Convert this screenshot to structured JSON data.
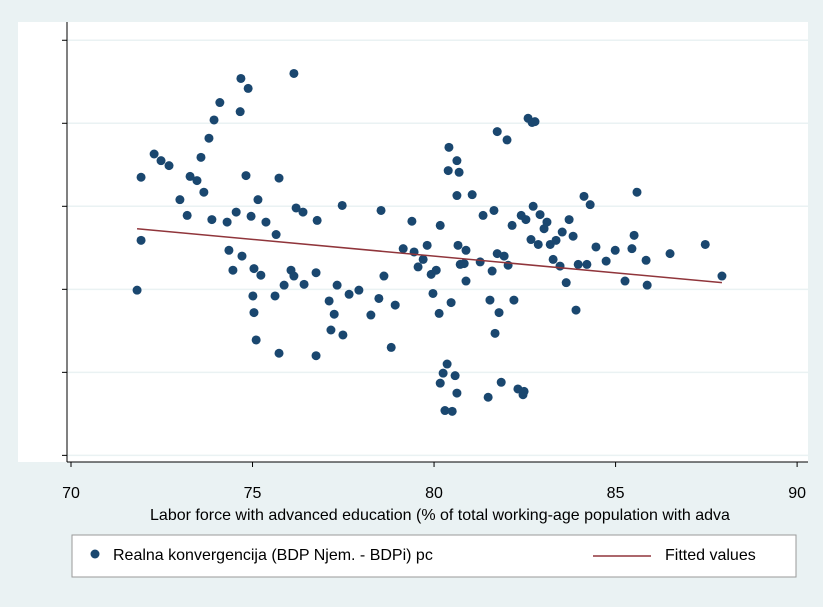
{
  "chart_data": {
    "type": "scatter",
    "xlabel": "Labor force with advanced education (% of total working-age population with adva",
    "xlim": [
      69.89,
      90.3
    ],
    "xticks": [
      70,
      75,
      80,
      85,
      90
    ],
    "ylim": [
      -0.08,
      5.22
    ],
    "yticks": [
      0,
      1,
      2,
      3,
      4,
      5
    ],
    "grid": true,
    "legend": "bottom",
    "series": [
      {
        "name": "Realna konvergencija (BDP Njem. - BDPi) pc",
        "color": "#1a476f",
        "x": [
          71.82,
          71.93,
          71.93,
          72.29,
          72.48,
          72.7,
          73.0,
          73.2,
          73.28,
          73.47,
          73.58,
          73.66,
          73.8,
          73.88,
          73.94,
          74.1,
          74.3,
          74.35,
          74.46,
          74.55,
          74.66,
          74.68,
          74.71,
          74.82,
          74.88,
          74.96,
          75.01,
          75.04,
          75.04,
          75.1,
          75.15,
          75.23,
          75.37,
          75.65,
          75.62,
          75.73,
          75.73,
          75.87,
          76.06,
          76.14,
          76.14,
          76.2,
          76.39,
          76.42,
          76.75,
          76.78,
          76.75,
          77.11,
          77.16,
          77.25,
          77.33,
          77.47,
          77.49,
          77.66,
          77.93,
          78.26,
          78.48,
          78.54,
          78.62,
          78.82,
          78.93,
          79.15,
          79.39,
          79.45,
          79.56,
          79.7,
          79.81,
          79.92,
          79.97,
          80.06,
          80.14,
          80.17,
          80.17,
          80.25,
          80.3,
          80.36,
          80.39,
          80.41,
          80.47,
          80.5,
          80.58,
          80.63,
          80.63,
          80.66,
          80.72,
          80.69,
          80.63,
          80.83,
          80.88,
          80.88,
          81.05,
          81.27,
          81.35,
          81.49,
          81.54,
          81.6,
          81.65,
          81.68,
          81.74,
          81.74,
          81.79,
          81.85,
          81.93,
          82.01,
          82.04,
          82.15,
          82.2,
          82.31,
          82.4,
          82.45,
          82.48,
          82.53,
          82.59,
          82.67,
          82.7,
          82.73,
          82.78,
          82.87,
          82.92,
          83.03,
          83.11,
          83.2,
          83.28,
          83.36,
          83.47,
          83.53,
          83.64,
          83.72,
          83.83,
          83.91,
          83.97,
          84.13,
          84.21,
          84.3,
          84.46,
          84.74,
          84.99,
          85.26,
          85.45,
          85.51,
          85.59,
          85.84,
          85.87,
          86.5,
          87.47,
          87.93
        ],
        "values": [
          1.99,
          3.35,
          2.59,
          3.63,
          3.55,
          3.49,
          3.08,
          2.89,
          3.36,
          3.31,
          3.59,
          3.17,
          3.82,
          2.84,
          4.04,
          4.25,
          2.81,
          2.47,
          2.23,
          2.93,
          4.14,
          4.54,
          2.4,
          3.37,
          4.42,
          2.88,
          1.92,
          2.25,
          1.72,
          1.39,
          3.08,
          2.17,
          2.81,
          2.66,
          1.92,
          3.34,
          1.23,
          2.05,
          2.23,
          4.6,
          2.16,
          2.98,
          2.93,
          2.06,
          2.2,
          2.83,
          1.2,
          1.86,
          1.51,
          1.7,
          2.05,
          3.01,
          1.45,
          1.94,
          1.99,
          1.69,
          1.89,
          2.95,
          2.16,
          1.3,
          1.81,
          2.49,
          2.82,
          2.45,
          2.27,
          2.36,
          2.53,
          2.18,
          1.95,
          2.23,
          1.71,
          0.87,
          2.77,
          0.99,
          0.54,
          1.1,
          3.43,
          3.71,
          1.84,
          0.53,
          0.96,
          3.55,
          3.13,
          2.53,
          2.3,
          3.41,
          0.75,
          2.31,
          2.47,
          2.1,
          3.14,
          2.33,
          2.89,
          0.7,
          1.87,
          2.22,
          2.95,
          1.47,
          3.9,
          2.43,
          1.72,
          0.88,
          2.4,
          3.8,
          2.29,
          2.77,
          1.87,
          0.8,
          2.89,
          0.73,
          0.77,
          2.84,
          4.06,
          2.6,
          4.01,
          3.0,
          4.02,
          2.54,
          2.9,
          2.73,
          2.81,
          2.54,
          2.36,
          2.59,
          2.28,
          2.69,
          2.08,
          2.84,
          2.64,
          1.75,
          2.3,
          3.12,
          2.3,
          3.02,
          2.51,
          2.34,
          2.47,
          2.1,
          2.49,
          2.65,
          3.17,
          2.35,
          2.05,
          2.43,
          2.54,
          2.16
        ]
      },
      {
        "name": "Fitted values",
        "type": "line",
        "color": "#90353b",
        "x": [
          71.82,
          87.93
        ],
        "values": [
          2.73,
          2.08
        ]
      }
    ]
  }
}
